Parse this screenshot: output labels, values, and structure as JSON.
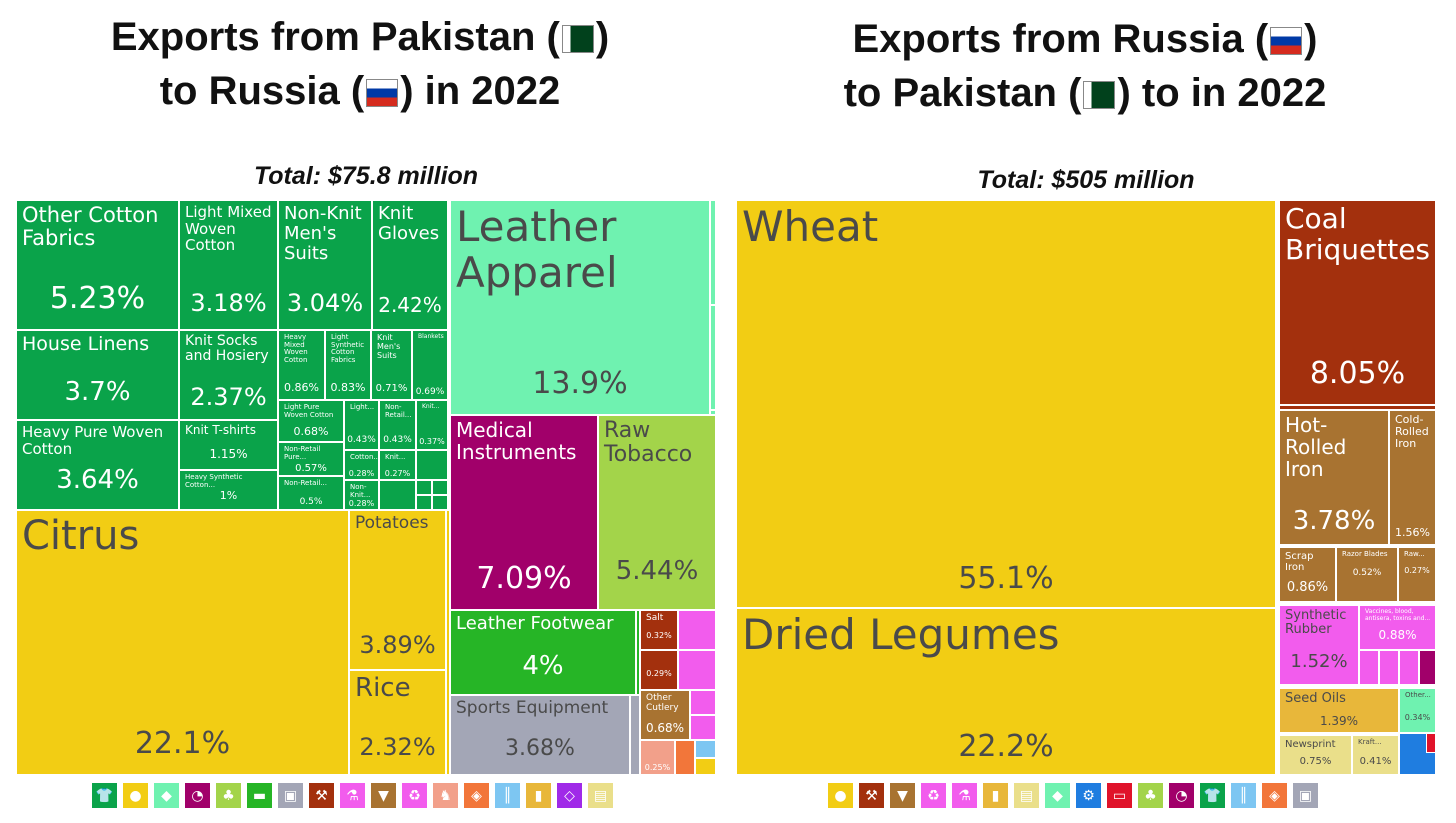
{
  "left": {
    "title_line1_prefix": "Exports from Pakistan (",
    "title_line1_suffix": ")",
    "title_line2_prefix": "to Russia (",
    "title_line2_suffix": ") in 2022",
    "total": "Total: $75.8 million"
  },
  "right": {
    "title_line1_prefix": "Exports from Russia (",
    "title_line1_suffix": ")",
    "title_line2_prefix": "to Pakistan (",
    "title_line2_suffix": ") to in 2022",
    "total": "Total: $505 million"
  },
  "colors": {
    "textiles": "#0aa34a",
    "vegetables": "#f2cd14",
    "animal_hides": "#6ff2b0",
    "instruments": "#a1006a",
    "plants": "#a3d44a",
    "footwear": "#26b526",
    "misc": "#a3a6b6",
    "minerals": "#a3300d",
    "metals": "#a87331",
    "chemicals": "#f25ced",
    "foodstuffs": "#e8b73a",
    "paper": "#eadf8a"
  },
  "chart_data": [
    {
      "type": "treemap",
      "title": "Exports from Pakistan to Russia in 2022",
      "total": "Total: $75.8 million",
      "unit": "percent of total",
      "series": [
        {
          "name": "Citrus",
          "value": 22.1,
          "pct_label": "22.1%",
          "sector": "vegetables"
        },
        {
          "name": "Leather Apparel",
          "value": 13.9,
          "pct_label": "13.9%",
          "sector": "animal_hides"
        },
        {
          "name": "Medical Instruments",
          "value": 7.09,
          "pct_label": "7.09%",
          "sector": "instruments"
        },
        {
          "name": "Raw Tobacco",
          "value": 5.44,
          "pct_label": "5.44%",
          "sector": "plants"
        },
        {
          "name": "Other Cotton Fabrics",
          "value": 5.23,
          "pct_label": "5.23%",
          "sector": "textiles"
        },
        {
          "name": "Leather Footwear",
          "value": 4.0,
          "pct_label": "4%",
          "sector": "footwear"
        },
        {
          "name": "Potatoes",
          "value": 3.89,
          "pct_label": "3.89%",
          "sector": "vegetables"
        },
        {
          "name": "House Linens",
          "value": 3.7,
          "pct_label": "3.7%",
          "sector": "textiles"
        },
        {
          "name": "Sports Equipment",
          "value": 3.68,
          "pct_label": "3.68%",
          "sector": "misc"
        },
        {
          "name": "Heavy Pure Woven Cotton",
          "value": 3.64,
          "pct_label": "3.64%",
          "sector": "textiles"
        },
        {
          "name": "Light Mixed Woven Cotton",
          "value": 3.18,
          "pct_label": "3.18%",
          "sector": "textiles"
        },
        {
          "name": "Non-Knit Men's Suits",
          "value": 3.04,
          "pct_label": "3.04%",
          "sector": "textiles"
        },
        {
          "name": "Knit Gloves",
          "value": 2.42,
          "pct_label": "2.42%",
          "sector": "textiles"
        },
        {
          "name": "Knit Socks and Hosiery",
          "value": 2.37,
          "pct_label": "2.37%",
          "sector": "textiles"
        },
        {
          "name": "Rice",
          "value": 2.32,
          "pct_label": "2.32%",
          "sector": "vegetables"
        },
        {
          "name": "Knit T-shirts",
          "value": 1.15,
          "pct_label": "1.15%",
          "sector": "textiles"
        },
        {
          "name": "Heavy Synthetic Cotton...",
          "value": 1.0,
          "pct_label": "1%",
          "sector": "textiles"
        },
        {
          "name": "Heavy Mixed Woven Cotton",
          "value": 0.86,
          "pct_label": "0.86%",
          "sector": "textiles"
        },
        {
          "name": "Light Synthetic Cotton Fabrics",
          "value": 0.83,
          "pct_label": "0.83%",
          "sector": "textiles"
        },
        {
          "name": "Knit Men's Suits",
          "value": 0.71,
          "pct_label": "0.71%",
          "sector": "textiles"
        },
        {
          "name": "Blankets",
          "value": 0.69,
          "pct_label": "0.69%",
          "sector": "textiles"
        },
        {
          "name": "Light Pure Woven Cotton",
          "value": 0.68,
          "pct_label": "0.68%",
          "sector": "textiles"
        },
        {
          "name": "Other Cutlery",
          "value": 0.68,
          "pct_label": "0.68%",
          "sector": "metals"
        },
        {
          "name": "Non-Retail Pure...",
          "value": 0.57,
          "pct_label": "0.57%",
          "sector": "textiles"
        },
        {
          "name": "Non-Retail...",
          "value": 0.5,
          "pct_label": "0.5%",
          "sector": "textiles"
        },
        {
          "name": "Light...",
          "value": 0.43,
          "pct_label": "0.43%",
          "sector": "textiles"
        },
        {
          "name": "Non-Retail...",
          "value": 0.43,
          "pct_label": "0.43%",
          "sector": "textiles"
        },
        {
          "name": "Knit...",
          "value": 0.37,
          "pct_label": "0.37%",
          "sector": "textiles"
        },
        {
          "name": "Salt",
          "value": 0.32,
          "pct_label": "0.32%",
          "sector": "minerals"
        },
        {
          "name": "",
          "value": 0.29,
          "pct_label": "0.29%",
          "sector": "minerals"
        },
        {
          "name": "Cotton...",
          "value": 0.28,
          "pct_label": "0.28%",
          "sector": "textiles"
        },
        {
          "name": "Non-Knit...",
          "value": 0.28,
          "pct_label": "0.28%",
          "sector": "textiles"
        },
        {
          "name": "Knit...",
          "value": 0.27,
          "pct_label": "0.27%",
          "sector": "textiles"
        },
        {
          "name": "",
          "value": 0.25,
          "pct_label": "0.25%",
          "sector": "stone"
        }
      ]
    },
    {
      "type": "treemap",
      "title": "Exports from Russia to Pakistan to in 2022",
      "total": "Total: $505 million",
      "unit": "percent of total",
      "series": [
        {
          "name": "Wheat",
          "value": 55.1,
          "pct_label": "55.1%",
          "sector": "vegetables"
        },
        {
          "name": "Dried Legumes",
          "value": 22.2,
          "pct_label": "22.2%",
          "sector": "vegetables"
        },
        {
          "name": "Coal Briquettes",
          "value": 8.05,
          "pct_label": "8.05%",
          "sector": "minerals"
        },
        {
          "name": "Hot-Rolled Iron",
          "value": 3.78,
          "pct_label": "3.78%",
          "sector": "metals"
        },
        {
          "name": "Cold-Rolled Iron",
          "value": 1.56,
          "pct_label": "1.56%",
          "sector": "metals"
        },
        {
          "name": "Synthetic Rubber",
          "value": 1.52,
          "pct_label": "1.52%",
          "sector": "chemicals"
        },
        {
          "name": "Seed Oils",
          "value": 1.39,
          "pct_label": "1.39%",
          "sector": "foodstuffs"
        },
        {
          "name": "Vaccines, blood, antisera, toxins and...",
          "value": 0.88,
          "pct_label": "0.88%",
          "sector": "chemicals"
        },
        {
          "name": "Scrap Iron",
          "value": 0.86,
          "pct_label": "0.86%",
          "sector": "metals"
        },
        {
          "name": "Newsprint",
          "value": 0.75,
          "pct_label": "0.75%",
          "sector": "paper"
        },
        {
          "name": "Razor Blades",
          "value": 0.52,
          "pct_label": "0.52%",
          "sector": "metals"
        },
        {
          "name": "Kraft...",
          "value": 0.41,
          "pct_label": "0.41%",
          "sector": "paper"
        },
        {
          "name": "Other...",
          "value": 0.34,
          "pct_label": "0.34%",
          "sector": "animal_hides"
        },
        {
          "name": "Raw...",
          "value": 0.27,
          "pct_label": "0.27%",
          "sector": "metals"
        }
      ]
    }
  ],
  "legend_left": [
    {
      "icon": "shirt-icon",
      "glyph": "👕",
      "color": "#0aa34a"
    },
    {
      "icon": "orange-icon",
      "glyph": "●",
      "color": "#f2cd14"
    },
    {
      "icon": "hide-icon",
      "glyph": "◆",
      "color": "#6ff2b0"
    },
    {
      "icon": "gauge-icon",
      "glyph": "◔",
      "color": "#a1006a"
    },
    {
      "icon": "plant-icon",
      "glyph": "♣",
      "color": "#a3d44a"
    },
    {
      "icon": "shoe-icon",
      "glyph": "▬",
      "color": "#26b526"
    },
    {
      "icon": "box-icon",
      "glyph": "▣",
      "color": "#a3a6b6"
    },
    {
      "icon": "pickaxe-icon",
      "glyph": "⚒",
      "color": "#a3300d"
    },
    {
      "icon": "flask-icon",
      "glyph": "⚗",
      "color": "#f25ced"
    },
    {
      "icon": "anvil-icon",
      "glyph": "▼",
      "color": "#a87331"
    },
    {
      "icon": "recycle-icon",
      "glyph": "♻",
      "color": "#f25ced"
    },
    {
      "icon": "animal-icon",
      "glyph": "♞",
      "color": "#f2a08a"
    },
    {
      "icon": "stone-icon",
      "glyph": "◈",
      "color": "#f2763a"
    },
    {
      "icon": "road-icon",
      "glyph": "║",
      "color": "#7dc6f2"
    },
    {
      "icon": "bottle-icon",
      "glyph": "▮",
      "color": "#e8b73a"
    },
    {
      "icon": "gem-icon",
      "glyph": "◇",
      "color": "#a02ae8"
    },
    {
      "icon": "paper-icon",
      "glyph": "▤",
      "color": "#eadf8a"
    }
  ],
  "legend_right": [
    {
      "icon": "orange-icon",
      "glyph": "●",
      "color": "#f2cd14"
    },
    {
      "icon": "pickaxe-icon",
      "glyph": "⚒",
      "color": "#a3300d"
    },
    {
      "icon": "anvil-icon",
      "glyph": "▼",
      "color": "#a87331"
    },
    {
      "icon": "recycle-icon",
      "glyph": "♻",
      "color": "#f25ced"
    },
    {
      "icon": "flask-icon",
      "glyph": "⚗",
      "color": "#f25ced"
    },
    {
      "icon": "bottle-icon",
      "glyph": "▮",
      "color": "#e8b73a"
    },
    {
      "icon": "paper-icon",
      "glyph": "▤",
      "color": "#eadf8a"
    },
    {
      "icon": "hide-icon",
      "glyph": "◆",
      "color": "#6ff2b0"
    },
    {
      "icon": "gear-icon",
      "glyph": "⚙",
      "color": "#1f7de0"
    },
    {
      "icon": "machine-icon",
      "glyph": "▭",
      "color": "#e0132a"
    },
    {
      "icon": "plant-icon",
      "glyph": "♣",
      "color": "#a3d44a"
    },
    {
      "icon": "gauge-icon",
      "glyph": "◔",
      "color": "#a1006a"
    },
    {
      "icon": "shirt-icon",
      "glyph": "👕",
      "color": "#0aa34a"
    },
    {
      "icon": "road-icon",
      "glyph": "║",
      "color": "#7dc6f2"
    },
    {
      "icon": "stone-icon",
      "glyph": "◈",
      "color": "#f2763a"
    },
    {
      "icon": "box-icon",
      "glyph": "▣",
      "color": "#a3a6b6"
    }
  ]
}
